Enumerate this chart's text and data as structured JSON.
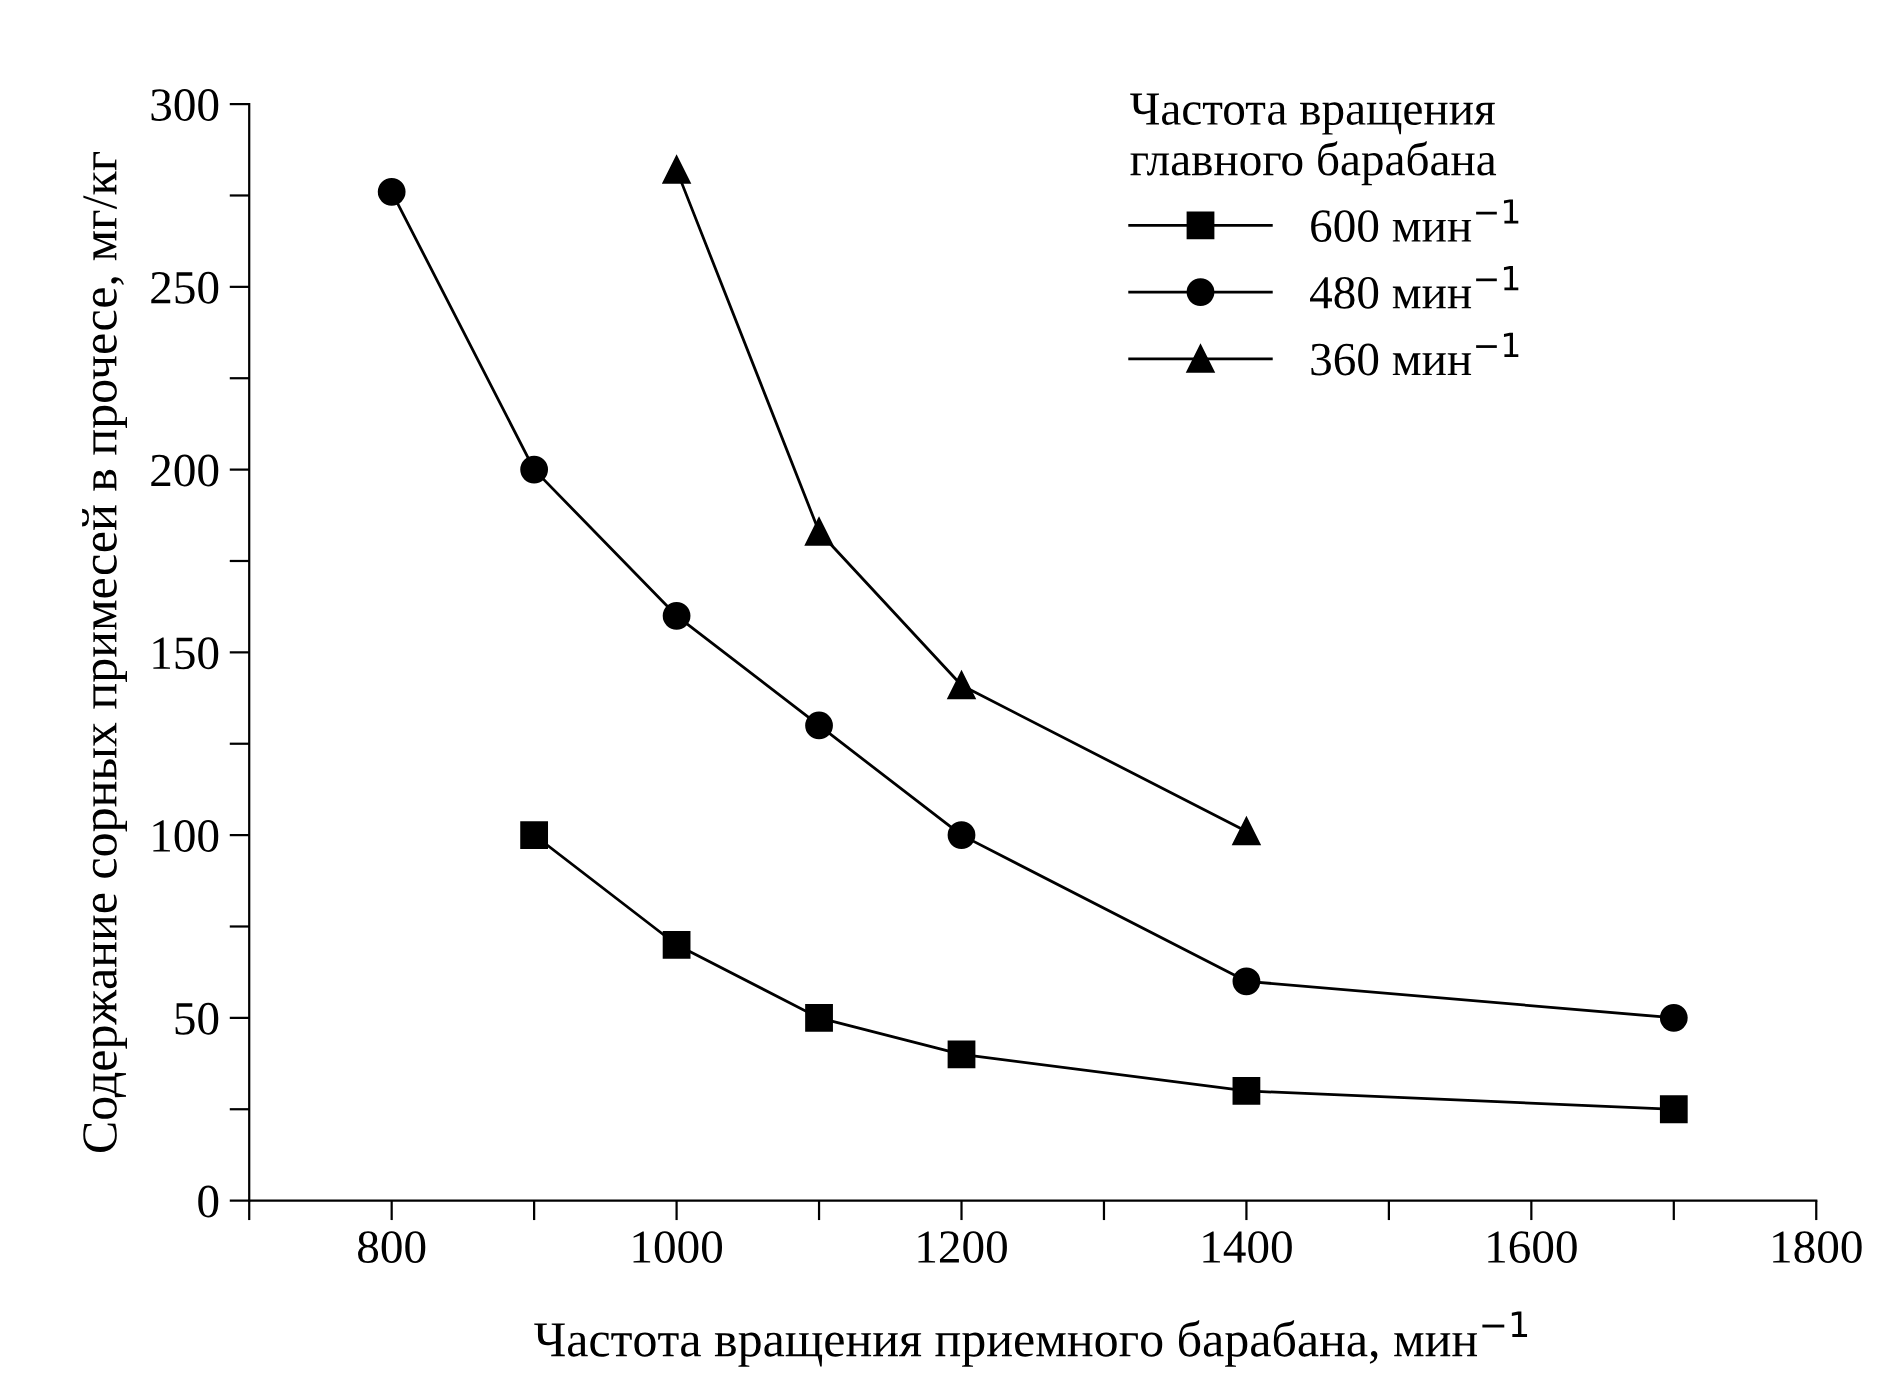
{
  "chart_data": {
    "type": "line",
    "xlabel": "Частота вращения приемного барабана, мин$^{−1}$",
    "ylabel": "Содержание сорных примесей в прочесе, мг/кг",
    "legend_title": "Частота вращения\nглавного барабана",
    "legend": "top right",
    "grid": false,
    "line_style": "solid",
    "xlim": [
      700,
      1800
    ],
    "ylim": [
      0,
      300
    ],
    "xticks": [
      {
        "value": 700,
        "label": null
      },
      800,
      {
        "value": 900,
        "label": null
      },
      1000,
      {
        "value": 1100,
        "label": null
      },
      1200,
      {
        "value": 1300,
        "label": null
      },
      1400,
      {
        "value": 1500,
        "label": null
      },
      1600,
      {
        "value": 1700,
        "label": null
      },
      1800
    ],
    "yticks": [
      0,
      {
        "value": 25,
        "label": null
      },
      50,
      {
        "value": 75,
        "label": null
      },
      100,
      {
        "value": 125,
        "label": null
      },
      150,
      {
        "value": 175,
        "label": null
      },
      200,
      {
        "value": 225,
        "label": null
      },
      250,
      {
        "value": 275,
        "label": null
      },
      300
    ],
    "series": [
      {
        "name": "600 мин$^{−1}$",
        "color": "#000000",
        "marker": "square",
        "x": [
          900,
          1000,
          1100,
          1200,
          1400,
          1700
        ],
        "values": [
          100,
          70,
          50,
          40,
          30,
          25
        ]
      },
      {
        "name": "480 мин$^{−1}$",
        "color": "#000000",
        "marker": "circle",
        "x": [
          800,
          900,
          1000,
          1100,
          1200,
          1400,
          1700
        ],
        "values": [
          276,
          200,
          160,
          130,
          100,
          60,
          50
        ]
      },
      {
        "name": "360 мин$^{−1}$",
        "color": "#000000",
        "marker": "triangle",
        "x": [
          1000,
          1100,
          1200,
          1400
        ],
        "values": [
          282,
          183,
          141,
          101
        ]
      }
    ]
  }
}
